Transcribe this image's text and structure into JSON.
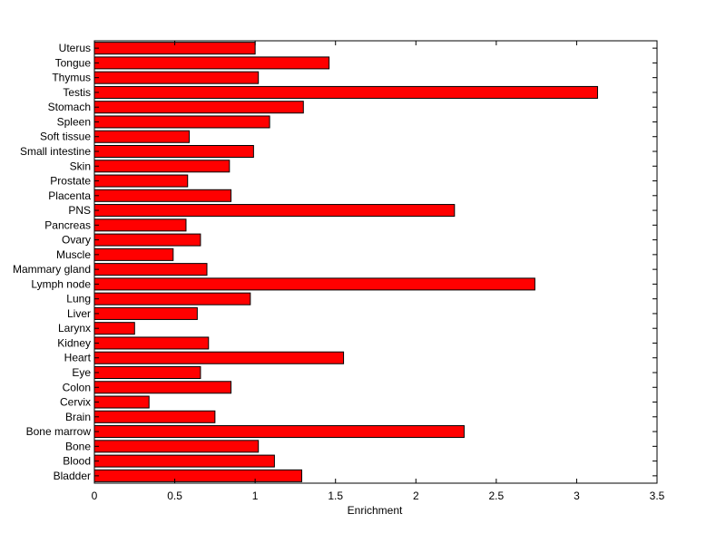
{
  "chart_data": {
    "type": "bar",
    "orientation": "horizontal",
    "categories": [
      "Uterus",
      "Tongue",
      "Thymus",
      "Testis",
      "Stomach",
      "Spleen",
      "Soft tissue",
      "Small intestine",
      "Skin",
      "Prostate",
      "Placenta",
      "PNS",
      "Pancreas",
      "Ovary",
      "Muscle",
      "Mammary gland",
      "Lymph node",
      "Lung",
      "Liver",
      "Larynx",
      "Kidney",
      "Heart",
      "Eye",
      "Colon",
      "Cervix",
      "Brain",
      "Bone marrow",
      "Bone",
      "Blood",
      "Bladder"
    ],
    "values": [
      1.0,
      1.46,
      1.02,
      3.13,
      1.3,
      1.09,
      0.59,
      0.99,
      0.84,
      0.58,
      0.85,
      2.24,
      0.57,
      0.66,
      0.49,
      0.7,
      2.74,
      0.97,
      0.64,
      0.25,
      0.71,
      1.55,
      0.66,
      0.85,
      0.34,
      0.75,
      2.3,
      1.02,
      1.12,
      1.29
    ],
    "xlabel": "Enrichment",
    "ylabel": "",
    "title": "",
    "xlim": [
      0,
      3.5
    ],
    "xticks": [
      "0",
      "0.5",
      "1",
      "1.5",
      "2",
      "2.5",
      "3",
      "3.5"
    ],
    "bar_color": "#ff0000",
    "edge_color": "#000000",
    "grid": false
  }
}
